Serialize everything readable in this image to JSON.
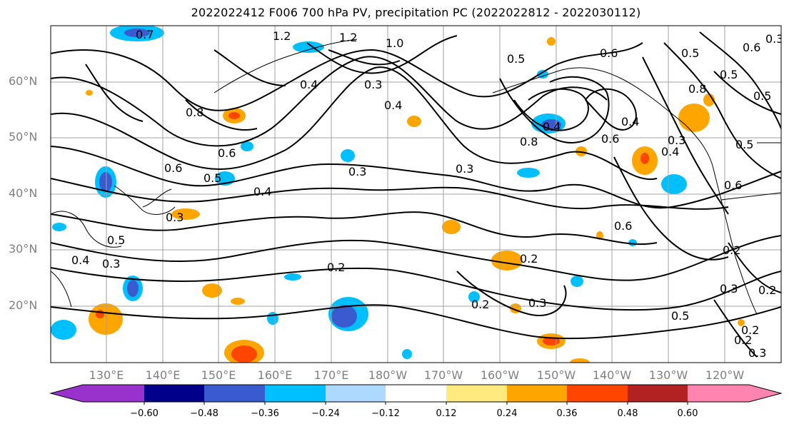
{
  "title": "2022022412 F006 700 hPa PV, precipitation PC (2022022812 - 2022030112)",
  "lat_labels": [
    "60°N",
    "50°N",
    "40°N",
    "30°N",
    "20°N"
  ],
  "lon_labels": [
    "130°E",
    "140°E",
    "150°E",
    "160°E",
    "170°E",
    "180°W",
    "170°W",
    "160°W",
    "150°W",
    "140°W",
    "130°W",
    "120°W"
  ],
  "colorbar": {
    "ticks": [
      "−0.60",
      "−0.48",
      "−0.36",
      "−0.24",
      "−0.12",
      "0.12",
      "0.24",
      "0.36",
      "0.48",
      "0.60"
    ],
    "colors": [
      "#9932cc",
      "#00008b",
      "#3a5bd0",
      "#00bfff",
      "#add8ff",
      "#ffffff",
      "#ffea80",
      "#ffa500",
      "#ff4500",
      "#b22222",
      "#ff85b0"
    ]
  },
  "contour_labels": [
    "0.7",
    "1.2",
    "1.2",
    "1.0",
    "0.5",
    "0.6",
    "0.5",
    "0.8",
    "0.4",
    "0.3",
    "0.6",
    "0.5",
    "0.4",
    "0.8",
    "0.4",
    "0.6",
    "0.4",
    "0.3",
    "0.6",
    "0.5",
    "0.4",
    "0.3",
    "0.6",
    "0.3",
    "0.5",
    "0.4",
    "0.3",
    "0.2",
    "0.2",
    "0.3",
    "0.2",
    "0.2",
    "0.2",
    "0.5",
    "0.3",
    "0.2",
    "0.2",
    "0.3",
    "0.5",
    "0.6",
    "0.3",
    "0.6",
    "0.5",
    "0.4",
    "0.8",
    "0.3"
  ]
}
